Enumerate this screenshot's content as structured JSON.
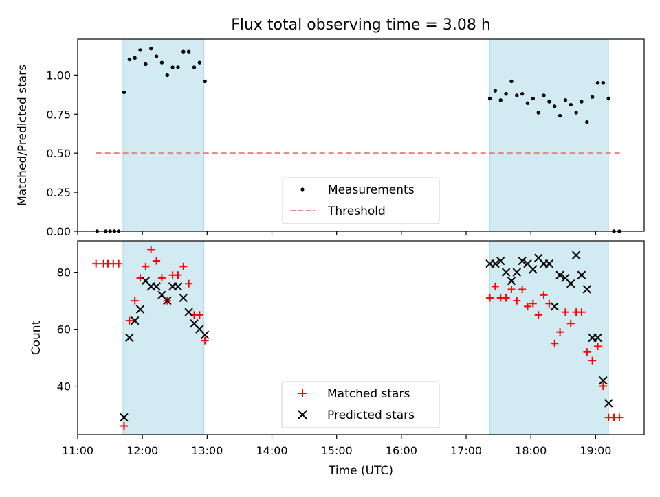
{
  "figure": {
    "title": "Flux total observing time = 3.08 h"
  },
  "chart_data": [
    {
      "type": "scatter",
      "ylabel": "Matched/Predicted stars",
      "xlabel": "",
      "xlim": [
        "11:00",
        "19:45"
      ],
      "ylim": [
        0,
        1.23
      ],
      "yticks": [
        "0.00",
        "0.25",
        "0.50",
        "0.75",
        "1.00"
      ],
      "shaded_intervals": [
        [
          "11:42",
          "12:57"
        ],
        [
          "17:22",
          "19:12"
        ]
      ],
      "shade_color": "#add8e6",
      "legend_position": "lower center",
      "series": [
        {
          "name": "Measurements",
          "marker": "dot",
          "color": "#000000",
          "points": [
            [
              "11:18",
              0
            ],
            [
              "11:26",
              0
            ],
            [
              "11:30",
              0
            ],
            [
              "11:34",
              0
            ],
            [
              "11:38",
              0
            ],
            [
              "11:43",
              0.89
            ],
            [
              "11:48",
              1.1
            ],
            [
              "11:53",
              1.11
            ],
            [
              "11:58",
              1.16
            ],
            [
              "12:03",
              1.07
            ],
            [
              "12:08",
              1.17
            ],
            [
              "12:13",
              1.12
            ],
            [
              "12:18",
              1.08
            ],
            [
              "12:23",
              1.0
            ],
            [
              "12:28",
              1.05
            ],
            [
              "12:33",
              1.05
            ],
            [
              "12:38",
              1.15
            ],
            [
              "12:43",
              1.15
            ],
            [
              "12:48",
              1.05
            ],
            [
              "12:53",
              1.08
            ],
            [
              "12:58",
              0.96
            ],
            [
              "17:22",
              0.85
            ],
            [
              "17:27",
              0.9
            ],
            [
              "17:32",
              0.84
            ],
            [
              "17:37",
              0.88
            ],
            [
              "17:42",
              0.96
            ],
            [
              "17:47",
              0.87
            ],
            [
              "17:52",
              0.88
            ],
            [
              "17:57",
              0.82
            ],
            [
              "18:02",
              0.85
            ],
            [
              "18:07",
              0.76
            ],
            [
              "18:12",
              0.87
            ],
            [
              "18:17",
              0.83
            ],
            [
              "18:22",
              0.8
            ],
            [
              "18:27",
              0.74
            ],
            [
              "18:32",
              0.84
            ],
            [
              "18:37",
              0.81
            ],
            [
              "18:42",
              0.76
            ],
            [
              "18:47",
              0.83
            ],
            [
              "18:52",
              0.7
            ],
            [
              "18:57",
              0.86
            ],
            [
              "19:02",
              0.95
            ],
            [
              "19:07",
              0.95
            ],
            [
              "19:12",
              0.85
            ],
            [
              "19:17",
              0
            ],
            [
              "19:22",
              0
            ]
          ]
        },
        {
          "name": "Threshold",
          "marker": "dashed-line",
          "color": "#f08080",
          "points": [
            [
              "11:17",
              0.5
            ],
            [
              "19:23",
              0.5
            ]
          ]
        }
      ]
    },
    {
      "type": "scatter",
      "ylabel": "Count",
      "xlabel": "Time (UTC)",
      "xlim": [
        "11:00",
        "19:45"
      ],
      "ylim": [
        23,
        91
      ],
      "yticks": [
        "40",
        "60",
        "80"
      ],
      "xticks": [
        "11:00",
        "12:00",
        "13:00",
        "14:00",
        "15:00",
        "16:00",
        "17:00",
        "18:00",
        "19:00"
      ],
      "shaded_intervals": [
        [
          "11:42",
          "12:57"
        ],
        [
          "17:22",
          "19:12"
        ]
      ],
      "shade_color": "#add8e6",
      "legend_position": "lower center",
      "series": [
        {
          "name": "Matched stars",
          "marker": "plus",
          "color": "#ff0000",
          "points": [
            [
              "11:17",
              83
            ],
            [
              "11:24",
              83
            ],
            [
              "11:28",
              83
            ],
            [
              "11:33",
              83
            ],
            [
              "11:38",
              83
            ],
            [
              "11:43",
              26
            ],
            [
              "11:48",
              63
            ],
            [
              "11:53",
              70
            ],
            [
              "11:58",
              78
            ],
            [
              "12:03",
              82
            ],
            [
              "12:08",
              88
            ],
            [
              "12:13",
              84
            ],
            [
              "12:18",
              78
            ],
            [
              "12:23",
              70
            ],
            [
              "12:28",
              79
            ],
            [
              "12:33",
              79
            ],
            [
              "12:38",
              82
            ],
            [
              "12:43",
              76
            ],
            [
              "12:48",
              65
            ],
            [
              "12:53",
              65
            ],
            [
              "12:58",
              56
            ],
            [
              "17:22",
              71
            ],
            [
              "17:27",
              75
            ],
            [
              "17:32",
              71
            ],
            [
              "17:37",
              71
            ],
            [
              "17:42",
              74
            ],
            [
              "17:47",
              70
            ],
            [
              "17:52",
              74
            ],
            [
              "17:57",
              68
            ],
            [
              "18:02",
              69
            ],
            [
              "18:07",
              65
            ],
            [
              "18:12",
              72
            ],
            [
              "18:17",
              69
            ],
            [
              "18:22",
              55
            ],
            [
              "18:27",
              59
            ],
            [
              "18:32",
              66
            ],
            [
              "18:37",
              62
            ],
            [
              "18:42",
              66
            ],
            [
              "18:47",
              66
            ],
            [
              "18:52",
              52
            ],
            [
              "18:57",
              49
            ],
            [
              "19:02",
              54
            ],
            [
              "19:07",
              40
            ],
            [
              "19:12",
              29
            ],
            [
              "19:17",
              29
            ],
            [
              "19:22",
              29
            ]
          ]
        },
        {
          "name": "Predicted stars",
          "marker": "x",
          "color": "#000000",
          "points": [
            [
              "11:43",
              29
            ],
            [
              "11:48",
              57
            ],
            [
              "11:53",
              63
            ],
            [
              "11:58",
              67
            ],
            [
              "12:03",
              77
            ],
            [
              "12:08",
              75
            ],
            [
              "12:13",
              75
            ],
            [
              "12:18",
              72
            ],
            [
              "12:23",
              70
            ],
            [
              "12:28",
              75
            ],
            [
              "12:33",
              75
            ],
            [
              "12:38",
              71
            ],
            [
              "12:43",
              66
            ],
            [
              "12:48",
              62
            ],
            [
              "12:53",
              60
            ],
            [
              "12:58",
              58
            ],
            [
              "17:22",
              83
            ],
            [
              "17:27",
              83
            ],
            [
              "17:32",
              84
            ],
            [
              "17:37",
              80
            ],
            [
              "17:42",
              77
            ],
            [
              "17:47",
              80
            ],
            [
              "17:52",
              84
            ],
            [
              "17:57",
              83
            ],
            [
              "18:02",
              81
            ],
            [
              "18:07",
              85
            ],
            [
              "18:12",
              83
            ],
            [
              "18:17",
              83
            ],
            [
              "18:22",
              68
            ],
            [
              "18:27",
              79
            ],
            [
              "18:32",
              78
            ],
            [
              "18:37",
              76
            ],
            [
              "18:42",
              86
            ],
            [
              "18:47",
              79
            ],
            [
              "18:52",
              74
            ],
            [
              "18:57",
              57
            ],
            [
              "19:02",
              57
            ],
            [
              "19:07",
              42
            ],
            [
              "19:12",
              34
            ]
          ]
        }
      ]
    }
  ]
}
